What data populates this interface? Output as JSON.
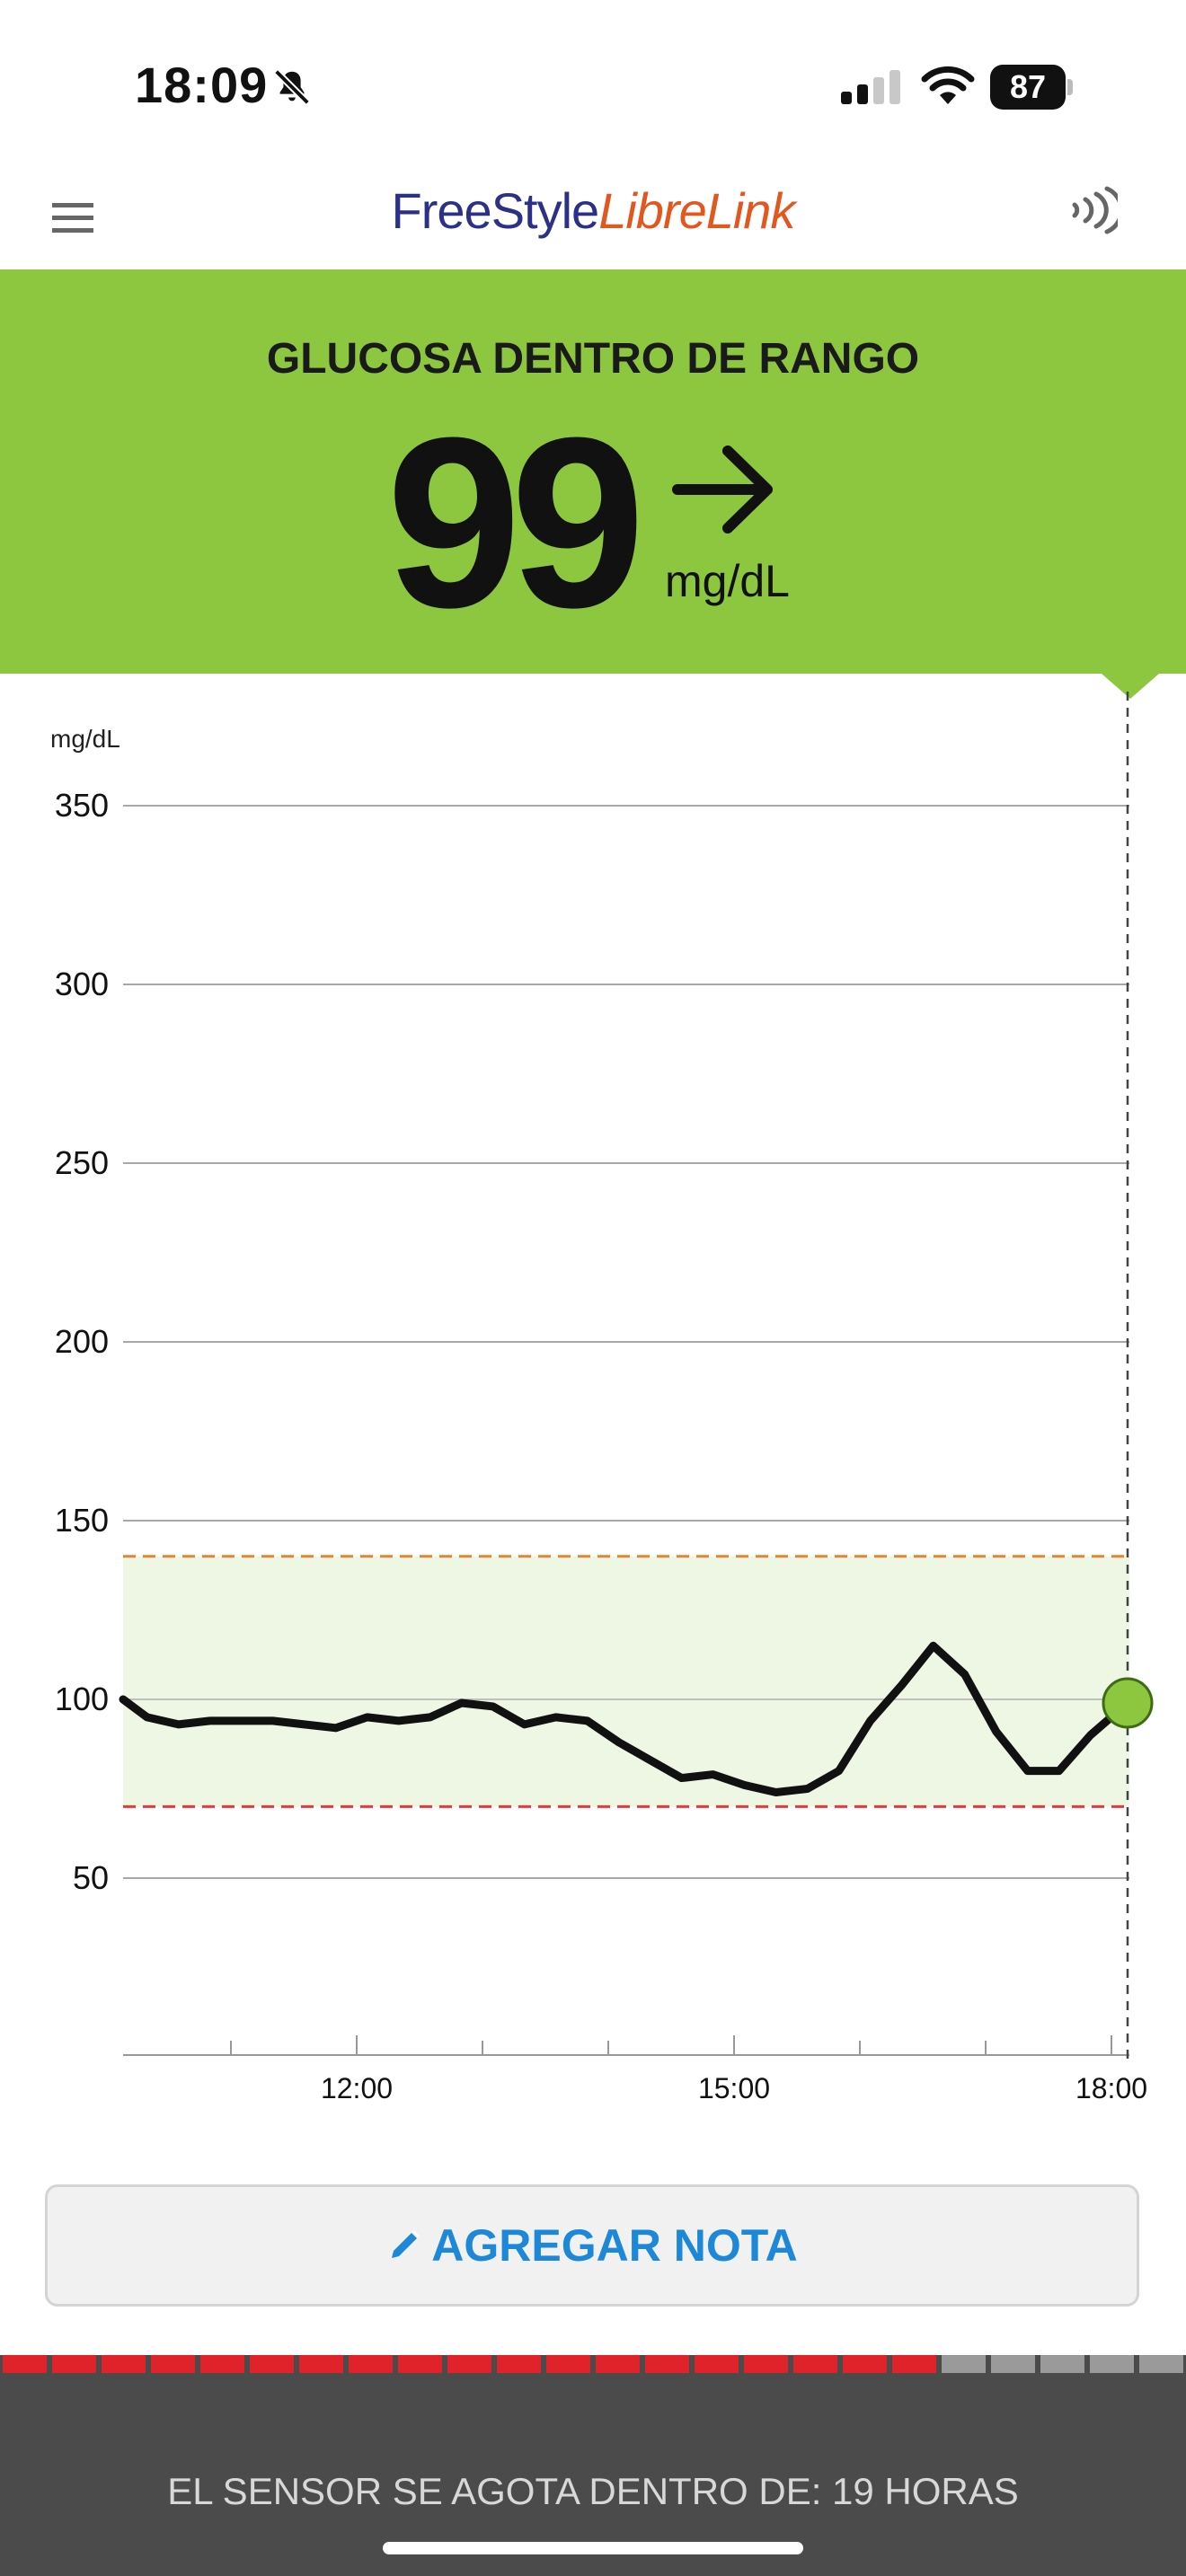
{
  "status_bar": {
    "time": "18:09",
    "battery": "87"
  },
  "header": {
    "logo_part1": "FreeStyle",
    "logo_part2": "LibreLink"
  },
  "banner": {
    "title": "GLUCOSA DENTRO DE RANGO",
    "value": "99",
    "unit": "mg/dL",
    "trend": "steady (right arrow)",
    "color": "#8dc63f"
  },
  "chart_data": {
    "type": "line",
    "ylabel": "mg/dL",
    "yticks": [
      50,
      100,
      150,
      200,
      250,
      300,
      350
    ],
    "ylim": [
      0,
      350
    ],
    "xticks": [
      "12:00",
      "15:00",
      "18:00"
    ],
    "target_range": {
      "low": 70,
      "high": 140
    },
    "current_value": 99,
    "series": [
      {
        "x": [
          "10:10",
          "10:20",
          "10:35",
          "10:50",
          "11:05",
          "11:20",
          "11:35",
          "11:50",
          "12:05",
          "12:20",
          "12:35",
          "12:50",
          "13:05",
          "13:20",
          "13:35",
          "13:50",
          "14:05",
          "14:20",
          "14:35",
          "14:50",
          "15:05",
          "15:20",
          "15:35",
          "15:50",
          "16:05",
          "16:20",
          "16:35",
          "16:50",
          "17:05",
          "17:20",
          "17:35",
          "17:50",
          "18:00"
        ],
        "values": [
          100,
          95,
          93,
          94,
          94,
          94,
          93,
          92,
          95,
          94,
          95,
          99,
          98,
          93,
          95,
          94,
          88,
          83,
          78,
          79,
          76,
          74,
          75,
          80,
          94,
          104,
          115,
          107,
          91,
          80,
          80,
          90,
          99
        ]
      }
    ]
  },
  "note_button": {
    "label": "AGREGAR NOTA"
  },
  "sensor": {
    "label": "EL SENSOR SE AGOTA DENTRO DE: 19 HORAS",
    "segments_total": 24,
    "segments_used": 19
  }
}
